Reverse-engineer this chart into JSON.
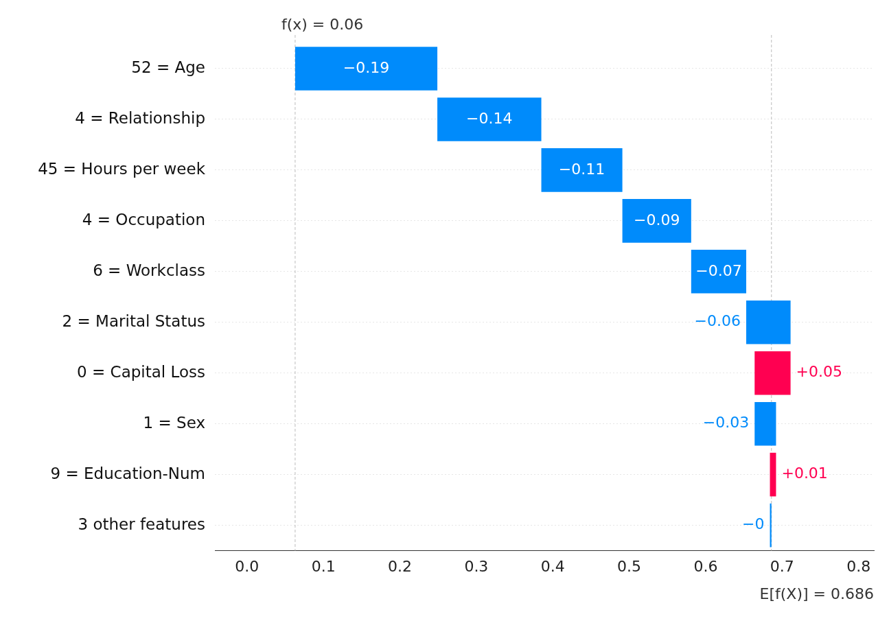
{
  "chart_data": {
    "type": "bar",
    "orientation": "horizontal",
    "categories": [
      "52 = Age",
      "4 = Relationship",
      "45 = Hours per week",
      "4 = Occupation",
      "6 = Workclass",
      "2 = Marital Status",
      "0 = Capital Loss",
      "1 = Sex",
      "9 = Education-Num",
      "3 other features"
    ],
    "values": [
      -0.186,
      -0.136,
      -0.106,
      -0.09,
      -0.072,
      -0.058,
      0.047,
      -0.028,
      0.008,
      -0.002
    ],
    "base": [
      0.249,
      0.385,
      0.491,
      0.581,
      0.653,
      0.711,
      0.664,
      0.692,
      0.684,
      0.686
    ],
    "colors": [
      "#008bfb",
      "#008bfb",
      "#008bfb",
      "#008bfb",
      "#008bfb",
      "#008bfb",
      "#ff0051",
      "#008bfb",
      "#ff0051",
      "#008bfb"
    ],
    "value_labels": [
      "−0.19",
      "−0.14",
      "−0.11",
      "−0.09",
      "−0.07",
      "−0.06",
      "+0.05",
      "−0.03",
      "+0.01",
      "−0"
    ],
    "xlim": [
      -0.042,
      0.82
    ],
    "xticks": [
      {
        "value": 0,
        "label": "0.0"
      },
      {
        "value": 0.1,
        "label": "0.1"
      },
      {
        "value": 0.2,
        "label": "0.2"
      },
      {
        "value": 0.3,
        "label": "0.3"
      },
      {
        "value": 0.4,
        "label": "0.4"
      },
      {
        "value": 0.5,
        "label": "0.5"
      },
      {
        "value": 0.6,
        "label": "0.6"
      },
      {
        "value": 0.7,
        "label": "0.7"
      },
      {
        "value": 0.8,
        "label": "0.8"
      }
    ],
    "ref_lines": [
      {
        "axis": "x",
        "value": 0.063,
        "label": "f(x) = 0.06",
        "color": "#bbbbbb",
        "line_style": "dashed"
      },
      {
        "axis": "x",
        "value": 0.686,
        "label": "E[f(X)] = 0.686",
        "color": "#bbbbbb",
        "line_style": "dashed"
      }
    ],
    "grid": "y",
    "legend": false
  }
}
